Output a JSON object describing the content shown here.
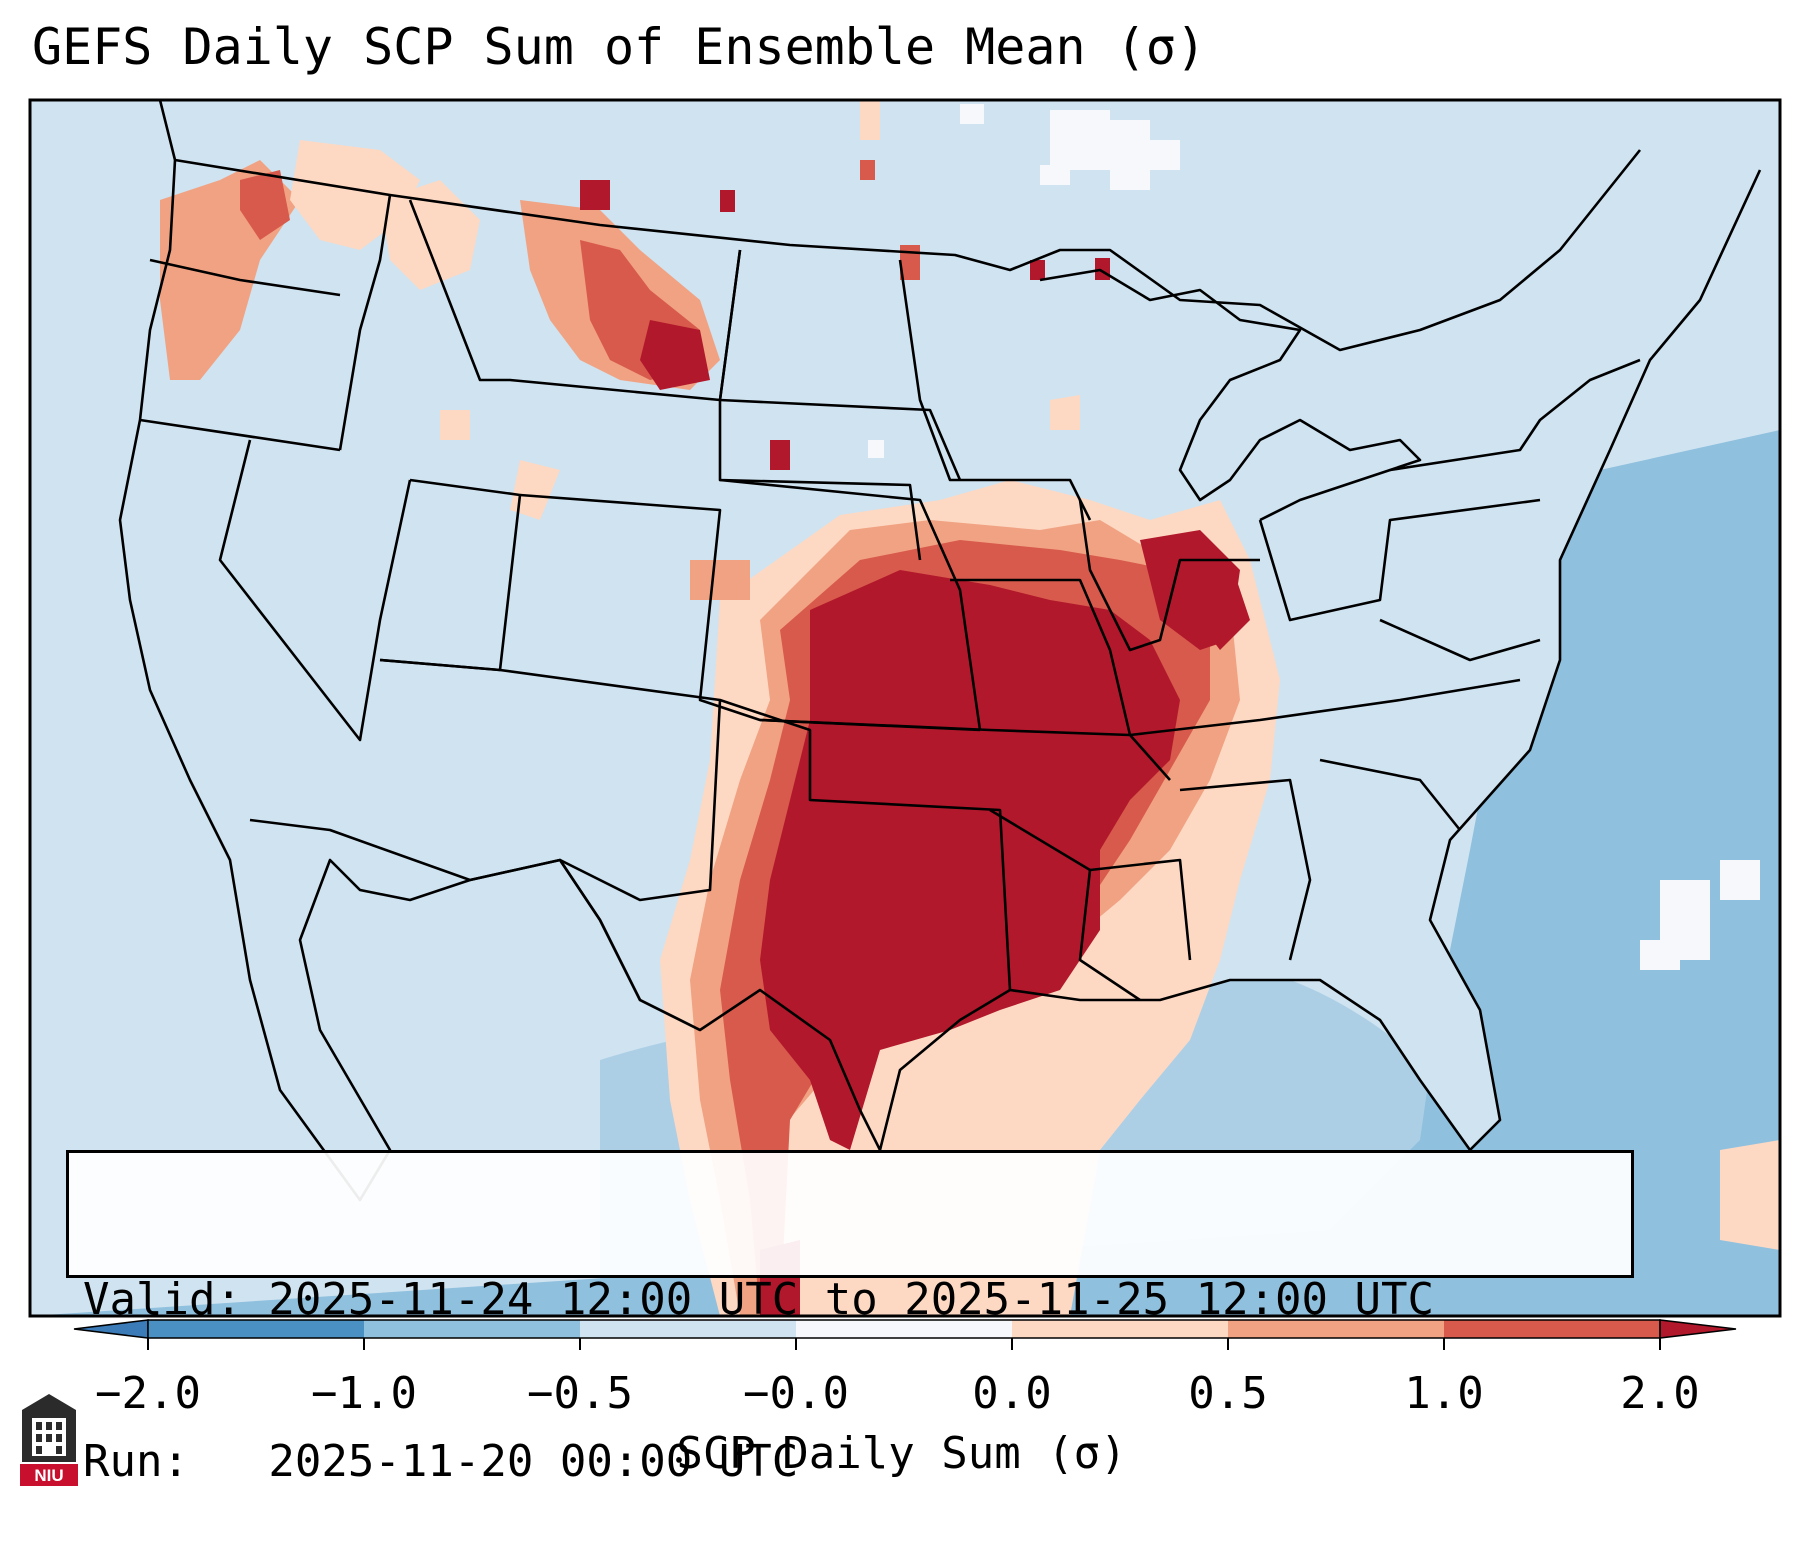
{
  "title": "GEFS Daily SCP Sum of Ensemble Mean (σ)",
  "info": {
    "valid_line": "Valid: 2025-11-24 12:00 UTC to 2025-11-25 12:00 UTC",
    "run_line": "Run:   2025-11-20 00:00 UTC"
  },
  "colorbar": {
    "label": "SCP Daily Sum (σ)",
    "ticks": [
      "−2.0",
      "−1.0",
      "−0.5",
      "−0.0",
      "0.0",
      "0.5",
      "1.0",
      "2.0"
    ],
    "colors": [
      "#4a90c2",
      "#8fc0de",
      "#cfe3f0",
      "#f6f8fb",
      "#fdd9c4",
      "#f1a282",
      "#d85a4c",
      "#b2182b"
    ],
    "extend_low_color": "#3b7bb8",
    "extend_high_color": "#b2182b"
  },
  "map": {
    "ocean_color": "#8fc0de",
    "land_color": "#cfe3f0",
    "region": "CONUS"
  },
  "logo_text": "NIU"
}
